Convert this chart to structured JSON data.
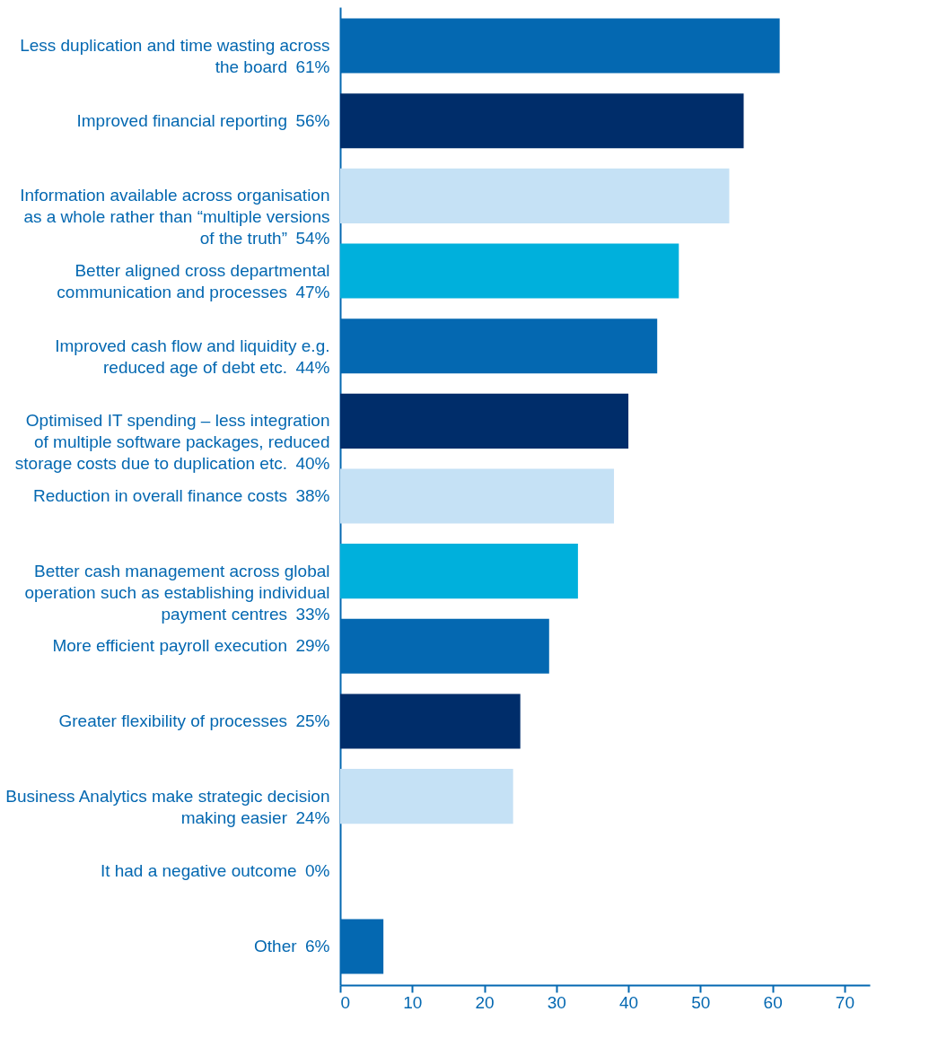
{
  "chart_data": {
    "type": "bar",
    "orientation": "horizontal",
    "categories": [
      "Less duplication and time wasting across the board",
      "Improved financial reporting",
      "Information available across organisation as a whole rather than “multiple versions of the truth”",
      "Better aligned cross departmental communication and processes",
      "Improved cash flow and liquidity e.g. reduced age of debt etc.",
      "Optimised IT spending – less integration of multiple software packages, reduced storage costs due to duplication etc.",
      "Reduction in overall finance costs",
      "Better cash management across global operation such as establishing individual payment centres",
      "More efficient payroll execution",
      "Greater flexibility of processes",
      "Business Analytics make strategic decision making easier",
      "It had a negative outcome",
      "Other"
    ],
    "values": [
      61,
      56,
      54,
      47,
      44,
      40,
      38,
      33,
      29,
      25,
      24,
      0,
      6
    ],
    "value_labels": [
      "61%",
      "56%",
      "54%",
      "47%",
      "44%",
      "40%",
      "38%",
      "33%",
      "29%",
      "25%",
      "24%",
      "0%",
      "6%"
    ],
    "colors": [
      "#0468b1",
      "#002d6a",
      "#c5e1f5",
      "#00b0dc",
      "#0468b1",
      "#002d6a",
      "#c5e1f5",
      "#00b0dc",
      "#0468b1",
      "#002d6a",
      "#c5e1f5",
      "#002d6a",
      "#0468b1"
    ],
    "xlim": [
      0,
      73.5
    ],
    "xticks": [
      0,
      10,
      20,
      30,
      40,
      50,
      60,
      70
    ],
    "grid": false
  }
}
